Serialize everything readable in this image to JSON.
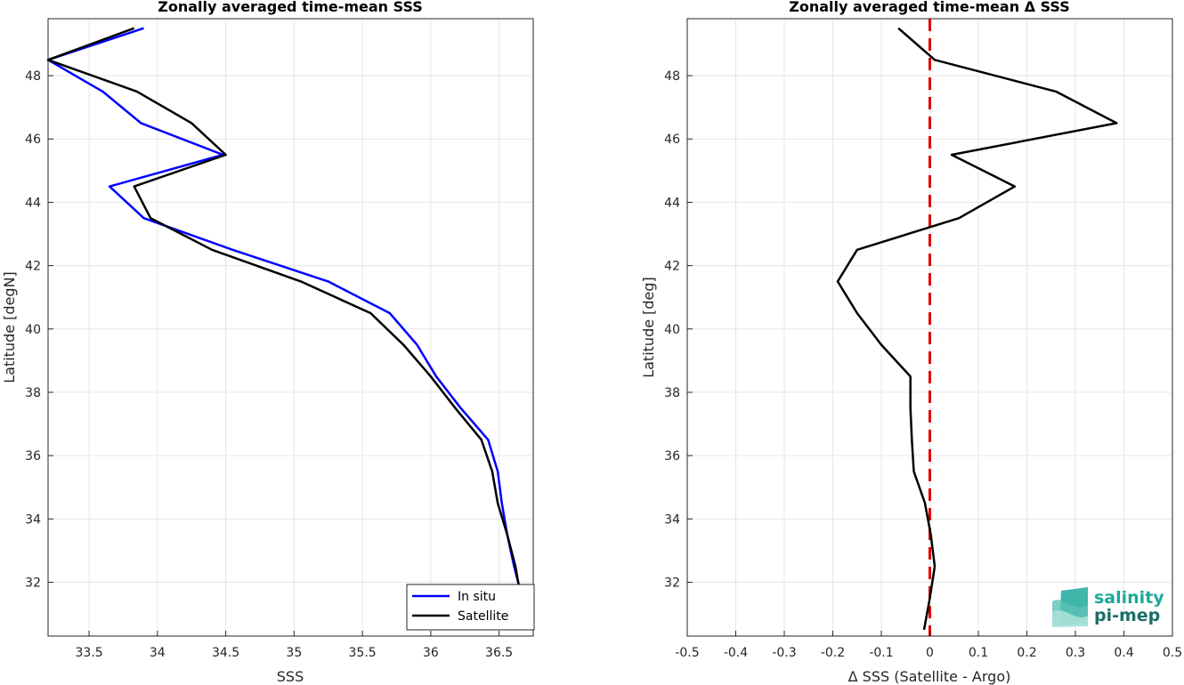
{
  "chart_data": [
    {
      "type": "line",
      "title": "Zonally averaged time-mean SSS",
      "xlabel": "SSS",
      "ylabel": "Latitude [degN]",
      "xlim": [
        33.2,
        36.75
      ],
      "ylim": [
        30.3,
        49.8
      ],
      "xticks": [
        33.5,
        34,
        34.5,
        35,
        35.5,
        36,
        36.5
      ],
      "yticks": [
        32,
        34,
        36,
        38,
        40,
        42,
        44,
        46,
        48
      ],
      "grid": true,
      "legend": "bottom-right",
      "y": [
        30.5,
        31.5,
        32.5,
        33.5,
        34.5,
        35.5,
        36.5,
        37.5,
        38.5,
        39.5,
        40.5,
        41.5,
        42.5,
        43.5,
        44.5,
        45.5,
        46.5,
        47.5,
        48.5,
        49.5
      ],
      "series": [
        {
          "name": "In situ",
          "color": "#0000ff",
          "x": [
            36.73,
            36.67,
            36.61,
            36.56,
            36.52,
            36.49,
            36.42,
            36.22,
            36.04,
            35.9,
            35.7,
            35.25,
            34.55,
            33.9,
            33.65,
            34.48,
            33.88,
            33.6,
            33.2,
            33.9
          ]
        },
        {
          "name": "Satellite",
          "color": "#000000",
          "x": [
            36.72,
            36.66,
            36.62,
            36.56,
            36.49,
            36.45,
            36.37,
            36.18,
            36.0,
            35.8,
            35.56,
            35.05,
            34.4,
            33.95,
            33.83,
            34.5,
            34.25,
            33.85,
            33.2,
            33.83
          ]
        }
      ]
    },
    {
      "type": "line",
      "title": "Zonally averaged time-mean Δ SSS",
      "xlabel": "Δ SSS (Satellite - Argo)",
      "ylabel": "Latitude [deg]",
      "xlim": [
        -0.5,
        0.5
      ],
      "ylim": [
        30.3,
        49.8
      ],
      "xticks": [
        -0.5,
        -0.4,
        -0.3,
        -0.2,
        -0.1,
        0,
        0.1,
        0.2,
        0.3,
        0.4,
        0.5
      ],
      "yticks": [
        32,
        34,
        36,
        38,
        40,
        42,
        44,
        46,
        48
      ],
      "grid": true,
      "reference_line": {
        "x": 0,
        "color": "#e00000",
        "style": "dashed"
      },
      "series": [
        {
          "color": "#000000",
          "y": [
            30.5,
            31.5,
            32.5,
            33.5,
            34.5,
            35.5,
            36.5,
            37.5,
            38.5,
            39.5,
            40.5,
            41.5,
            42.5,
            43.5,
            44.5,
            45.5,
            46.5,
            47.5,
            48.5,
            49.5
          ],
          "x": [
            -0.012,
            0.0,
            0.01,
            0.002,
            -0.01,
            -0.033,
            -0.037,
            -0.04,
            -0.04,
            -0.1,
            -0.15,
            -0.19,
            -0.15,
            0.06,
            0.175,
            0.045,
            0.385,
            0.26,
            0.01,
            -0.065
          ]
        }
      ]
    }
  ],
  "logo": {
    "line1": "salinity",
    "line2": "pi-mep",
    "color": "#1ea89a"
  }
}
